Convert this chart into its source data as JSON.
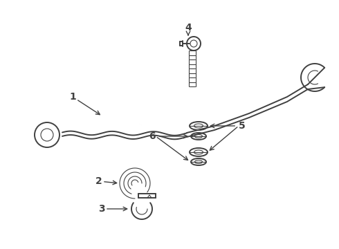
{
  "bg_color": "#ffffff",
  "line_color": "#404040",
  "figsize": [
    4.9,
    3.6
  ],
  "dpi": 100,
  "label_fontsize": 10,
  "lw_main": 1.4,
  "lw_thin": 0.8
}
